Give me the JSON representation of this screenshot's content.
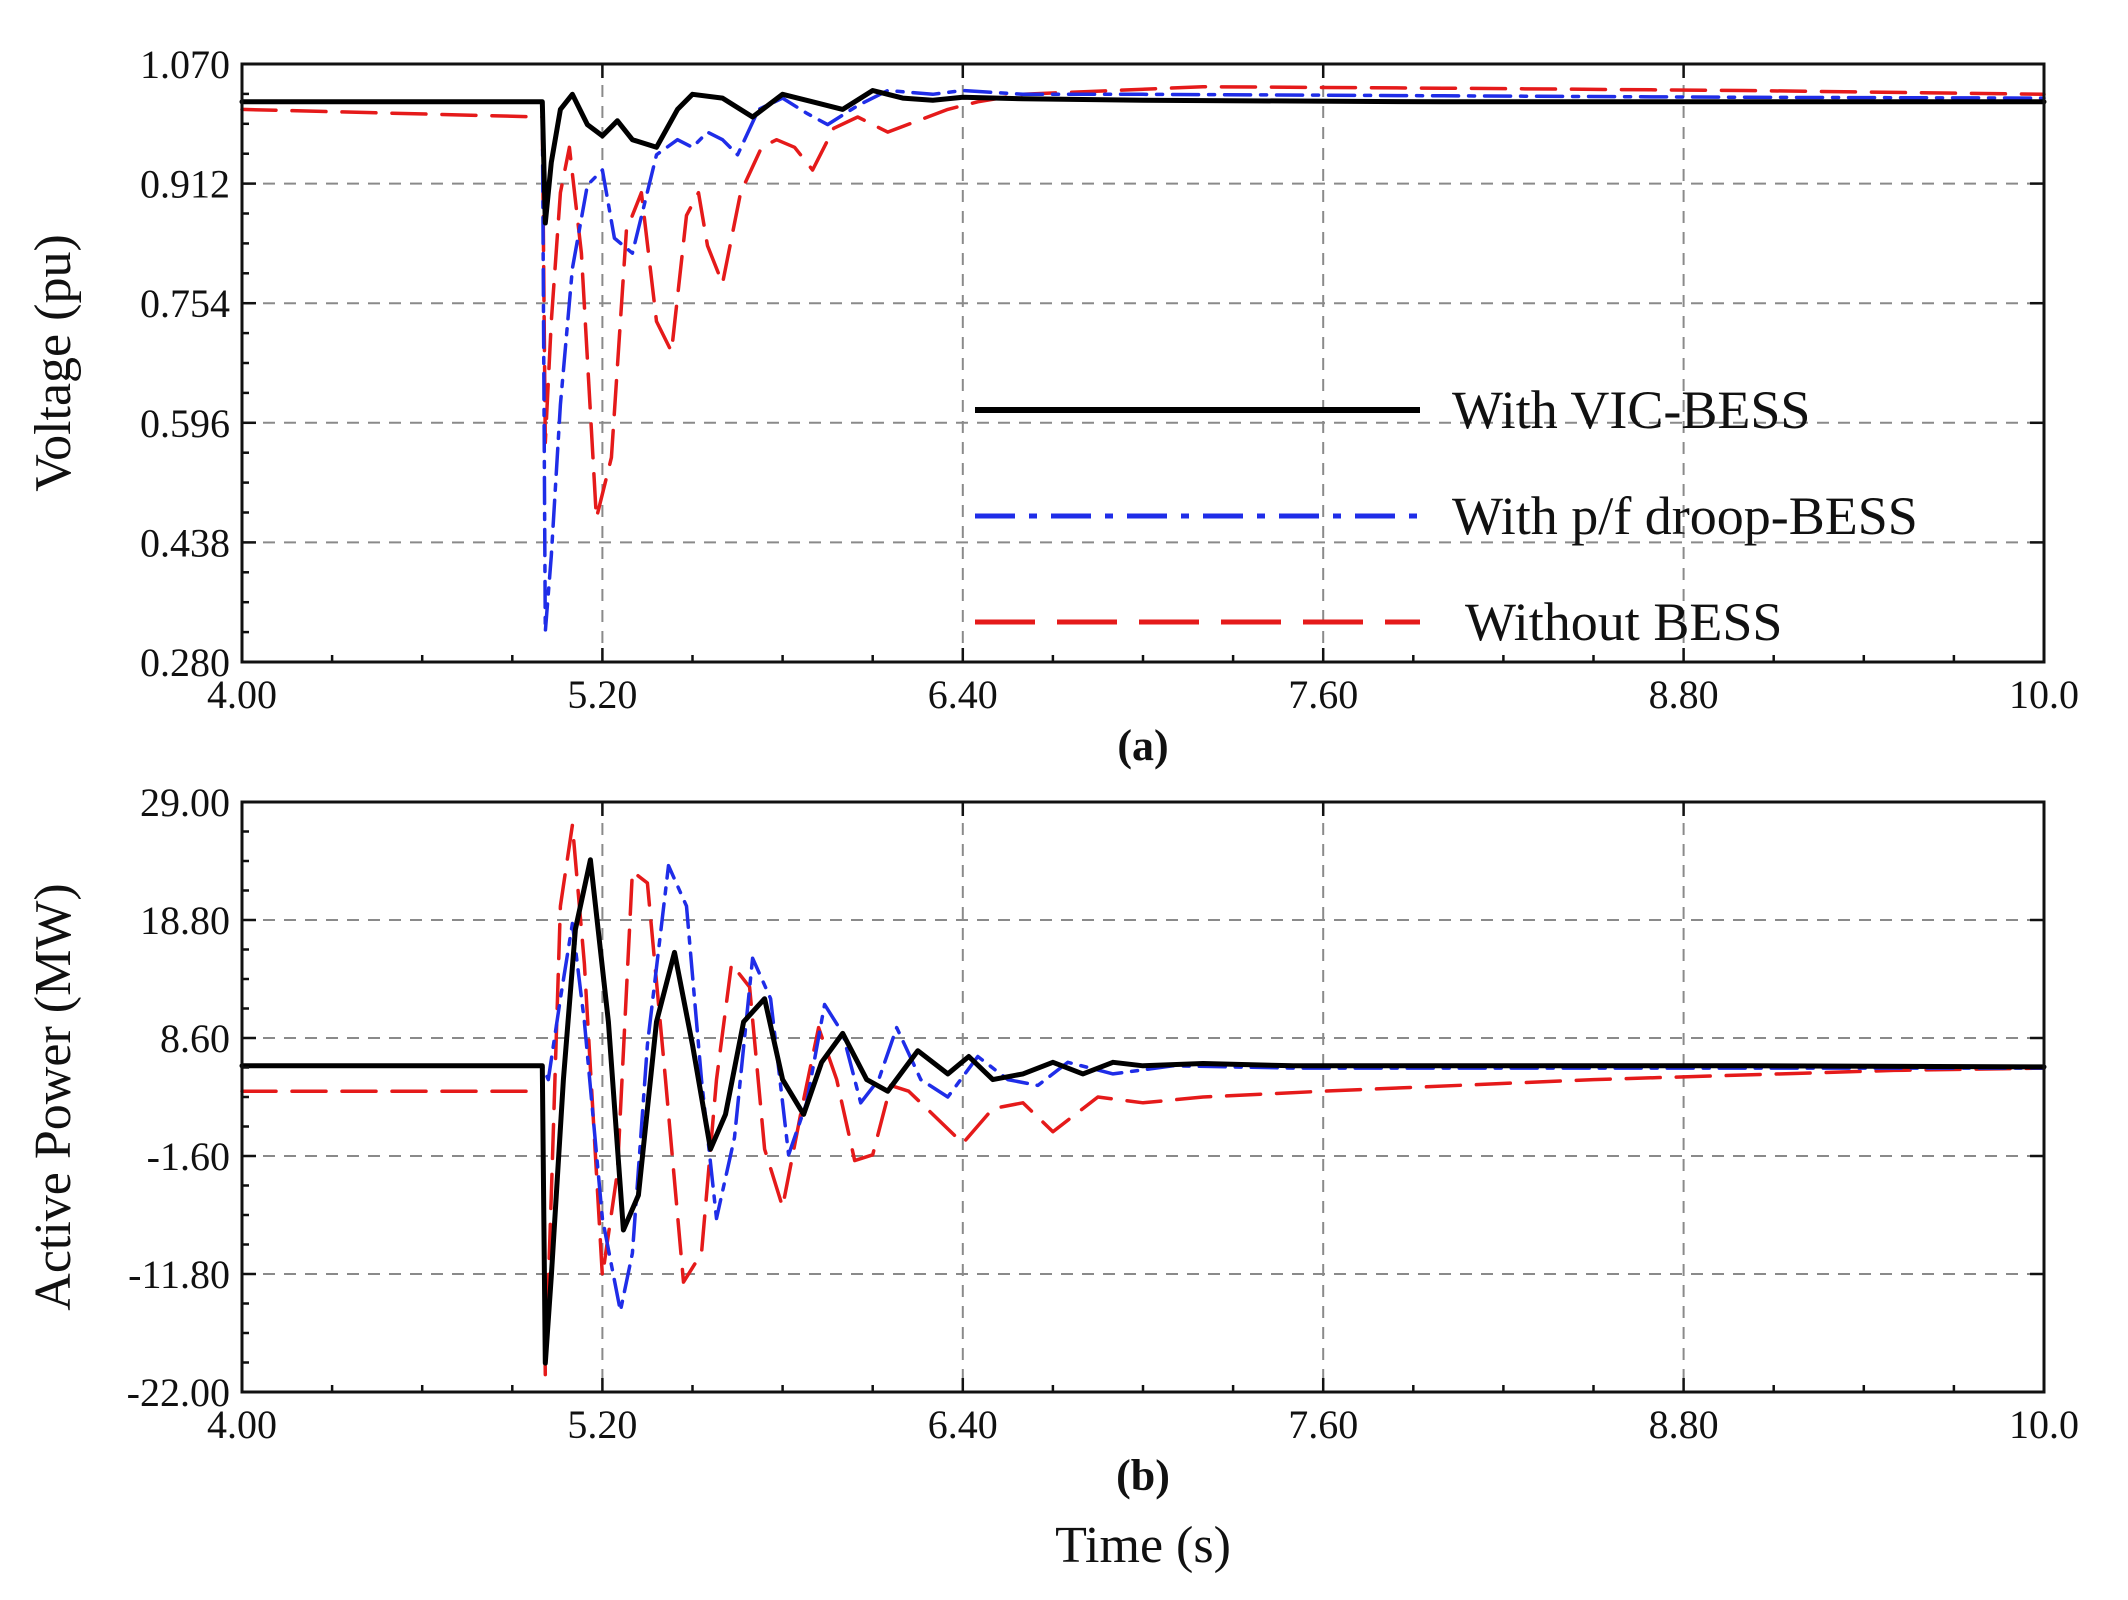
{
  "colors": {
    "vic": "#000000",
    "droop": "#1f2de8",
    "without": "#e51a1a"
  },
  "chart_data": [
    {
      "type": "line",
      "panel_label": "(a)",
      "xlabel": "",
      "ylabel": "Voltage (pu)",
      "xlim": [
        4.0,
        10.0
      ],
      "ylim": [
        0.28,
        1.07
      ],
      "xticks": [
        "4.00",
        "5.20",
        "6.40",
        "7.60",
        "8.80",
        "10.0"
      ],
      "yticks": [
        "0.280",
        "0.438",
        "0.596",
        "0.754",
        "0.912",
        "1.070"
      ],
      "grid": true,
      "legend_position": "lower-right",
      "series": [
        {
          "name": "With VIC-BESS",
          "style": "solid",
          "x": [
            4.0,
            5.0,
            5.01,
            5.03,
            5.06,
            5.1,
            5.15,
            5.2,
            5.25,
            5.3,
            5.38,
            5.45,
            5.5,
            5.6,
            5.7,
            5.8,
            5.9,
            6.0,
            6.1,
            6.2,
            6.3,
            6.4,
            6.6,
            7.0,
            8.0,
            9.0,
            10.0
          ],
          "y": [
            1.02,
            1.02,
            0.86,
            0.94,
            1.01,
            1.03,
            0.99,
            0.975,
            0.995,
            0.97,
            0.96,
            1.01,
            1.03,
            1.025,
            1.0,
            1.03,
            1.02,
            1.01,
            1.035,
            1.025,
            1.022,
            1.026,
            1.024,
            1.022,
            1.02,
            1.02,
            1.02
          ]
        },
        {
          "name": "With p/f droop-BESS",
          "style": "dashdot",
          "x": [
            4.0,
            5.0,
            5.01,
            5.03,
            5.06,
            5.1,
            5.15,
            5.2,
            5.24,
            5.3,
            5.38,
            5.45,
            5.5,
            5.55,
            5.6,
            5.65,
            5.72,
            5.8,
            5.88,
            5.95,
            6.05,
            6.15,
            6.3,
            6.4,
            6.6,
            7.0,
            8.0,
            9.0,
            10.0
          ],
          "y": [
            1.02,
            1.02,
            0.32,
            0.42,
            0.62,
            0.8,
            0.91,
            0.93,
            0.84,
            0.82,
            0.95,
            0.97,
            0.96,
            0.98,
            0.97,
            0.95,
            1.01,
            1.025,
            1.005,
            0.99,
            1.015,
            1.035,
            1.03,
            1.035,
            1.03,
            1.03,
            1.028,
            1.026,
            1.025
          ]
        },
        {
          "name": "Without BESS",
          "style": "dashed",
          "x": [
            4.0,
            5.0,
            5.01,
            5.03,
            5.06,
            5.09,
            5.13,
            5.18,
            5.23,
            5.28,
            5.33,
            5.38,
            5.43,
            5.48,
            5.52,
            5.55,
            5.6,
            5.66,
            5.73,
            5.78,
            5.84,
            5.9,
            5.97,
            6.05,
            6.15,
            6.25,
            6.35,
            6.45,
            6.6,
            6.9,
            7.2,
            8.0,
            9.0,
            10.0
          ],
          "y": [
            1.01,
            1.0,
            0.57,
            0.73,
            0.9,
            0.96,
            0.82,
            0.47,
            0.55,
            0.85,
            0.9,
            0.73,
            0.69,
            0.87,
            0.9,
            0.83,
            0.78,
            0.9,
            0.96,
            0.97,
            0.96,
            0.93,
            0.985,
            1.0,
            0.98,
            0.995,
            1.01,
            1.02,
            1.03,
            1.035,
            1.04,
            1.038,
            1.035,
            1.03
          ]
        }
      ]
    },
    {
      "type": "line",
      "panel_label": "(b)",
      "xlabel": "Time (s)",
      "ylabel": "Active Power (MW)",
      "xlim": [
        4.0,
        10.0
      ],
      "ylim": [
        -22.0,
        29.0
      ],
      "xticks": [
        "4.00",
        "5.20",
        "6.40",
        "7.60",
        "8.80",
        "10.0"
      ],
      "yticks": [
        "-22.00",
        "-11.80",
        "-1.60",
        "8.60",
        "18.80",
        "29.00"
      ],
      "grid": true,
      "series": [
        {
          "name": "With VIC-BESS",
          "style": "solid",
          "x": [
            4.0,
            5.0,
            5.01,
            5.03,
            5.07,
            5.11,
            5.16,
            5.22,
            5.27,
            5.32,
            5.38,
            5.44,
            5.5,
            5.56,
            5.61,
            5.67,
            5.74,
            5.8,
            5.87,
            5.93,
            6.0,
            6.08,
            6.15,
            6.25,
            6.35,
            6.42,
            6.5,
            6.6,
            6.7,
            6.8,
            6.9,
            7.0,
            7.2,
            7.5,
            8.0,
            9.0,
            10.0
          ],
          "y": [
            6.2,
            6.2,
            -19.5,
            -12.0,
            5.0,
            18.0,
            24.0,
            10.0,
            -8.0,
            -5.0,
            10.0,
            16.0,
            8.0,
            -1.0,
            2.0,
            10.0,
            12.0,
            5.0,
            2.0,
            6.5,
            9.0,
            5.0,
            4.0,
            7.5,
            5.5,
            7.0,
            5.0,
            5.5,
            6.5,
            5.5,
            6.5,
            6.2,
            6.4,
            6.2,
            6.2,
            6.2,
            6.1
          ]
        },
        {
          "name": "With p/f droop-BESS",
          "style": "dashdot",
          "x": [
            4.0,
            5.0,
            5.02,
            5.06,
            5.1,
            5.14,
            5.2,
            5.26,
            5.3,
            5.35,
            5.42,
            5.48,
            5.53,
            5.58,
            5.64,
            5.7,
            5.76,
            5.82,
            5.88,
            5.94,
            6.0,
            6.06,
            6.12,
            6.18,
            6.26,
            6.35,
            6.45,
            6.55,
            6.65,
            6.75,
            6.9,
            7.1,
            7.5,
            8.0,
            9.0,
            10.0
          ],
          "y": [
            6.2,
            6.2,
            5.0,
            12.0,
            18.5,
            10.0,
            -7.0,
            -15.0,
            -10.0,
            8.0,
            23.5,
            20.0,
            5.0,
            -7.0,
            0.0,
            15.5,
            12.0,
            -1.5,
            3.0,
            11.5,
            9.0,
            3.0,
            5.0,
            9.5,
            5.0,
            3.5,
            7.0,
            5.0,
            4.5,
            6.5,
            5.5,
            6.2,
            6.0,
            6.0,
            6.0,
            6.0
          ]
        },
        {
          "name": "Without BESS",
          "style": "dashed",
          "x": [
            4.0,
            5.0,
            5.01,
            5.03,
            5.06,
            5.1,
            5.14,
            5.2,
            5.25,
            5.3,
            5.35,
            5.41,
            5.47,
            5.53,
            5.58,
            5.63,
            5.69,
            5.74,
            5.8,
            5.86,
            5.92,
            5.98,
            6.04,
            6.1,
            6.16,
            6.22,
            6.3,
            6.4,
            6.5,
            6.6,
            6.7,
            6.85,
            7.0,
            7.2,
            7.6,
            8.5,
            9.5,
            10.0
          ],
          "y": [
            4.0,
            4.0,
            -20.5,
            -5.0,
            20.0,
            27.0,
            15.0,
            -12.0,
            -3.0,
            23.0,
            22.0,
            5.0,
            -12.5,
            -10.0,
            5.0,
            15.0,
            13.0,
            -1.0,
            -6.0,
            2.0,
            9.5,
            5.0,
            -2.0,
            -1.5,
            4.5,
            4.0,
            2.0,
            -0.5,
            2.5,
            3.0,
            0.5,
            3.5,
            3.0,
            3.5,
            4.0,
            5.0,
            5.8,
            6.0
          ]
        }
      ]
    }
  ]
}
